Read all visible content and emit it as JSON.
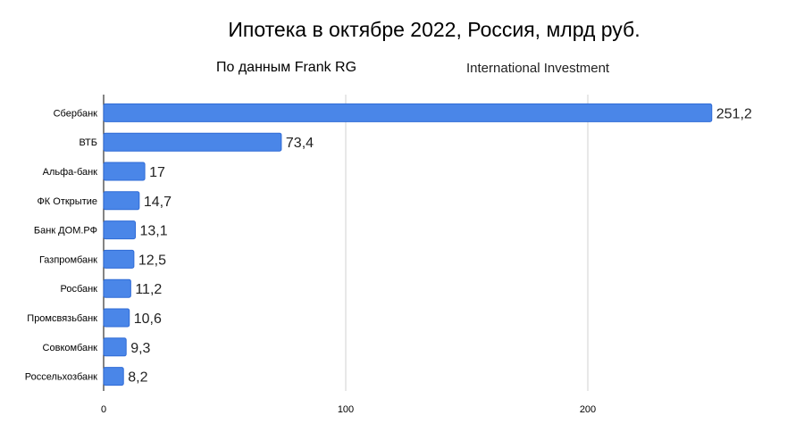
{
  "chart_data": {
    "type": "bar",
    "orientation": "horizontal",
    "title": "Ипотека в октябре 2022, Россия, млрд руб.",
    "subtitle": "По данным Frank RG",
    "source": "International Investment",
    "categories": [
      "Сбербанк",
      "ВТБ",
      "Альфа-банк",
      "ФК Открытие",
      "Банк ДОМ.РФ",
      "Газпромбанк",
      "Росбанк",
      "Промсвязьбанк",
      "Совкомбанк",
      "Россельхозбанк"
    ],
    "values": [
      251.2,
      73.4,
      17,
      14.7,
      13.1,
      12.5,
      11.2,
      10.6,
      9.3,
      8.2
    ],
    "value_labels": [
      "251,2",
      "73,4",
      "17",
      "14,7",
      "13,1",
      "12,5",
      "11,2",
      "10,6",
      "9,3",
      "8,2"
    ],
    "x_ticks": [
      0,
      100,
      200
    ],
    "x_tick_labels": [
      "0",
      "100",
      "200"
    ],
    "xlim": [
      0,
      280
    ],
    "grid": "vertical",
    "bar_color": "#4a86e8",
    "bar_border_color": "#2f6bd6"
  }
}
